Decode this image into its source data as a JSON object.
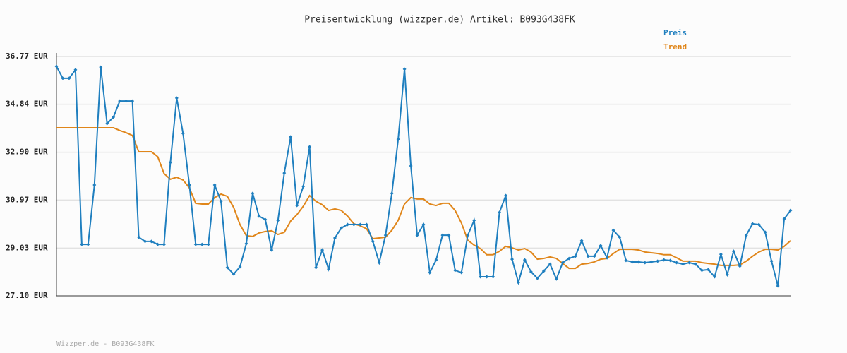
{
  "chart_data": {
    "type": "line",
    "title": "Preisentwicklung (wizzper.de) Artikel: B093G438FK",
    "footer": "Wizzper.de - B093G438FK",
    "categories": [
      null,
      null,
      null,
      null,
      null,
      null,
      null,
      null,
      null,
      null,
      null,
      null,
      null,
      null,
      null,
      null,
      null,
      null,
      null,
      null,
      null,
      null,
      null,
      null,
      null,
      null,
      null,
      null,
      null,
      null,
      null,
      null,
      null,
      null,
      null,
      null,
      null,
      null,
      null,
      null,
      null,
      null,
      null,
      null,
      null,
      null,
      null,
      null,
      null,
      null,
      null,
      null,
      null,
      null,
      null,
      null,
      null,
      null,
      null,
      null,
      null,
      null,
      null,
      null,
      null,
      null,
      null,
      null,
      null,
      null,
      null,
      null,
      null,
      null,
      null,
      null,
      null,
      null,
      null,
      null,
      null,
      null,
      null,
      null,
      null,
      null,
      null,
      null,
      null,
      null,
      null,
      null,
      null,
      null,
      null,
      null,
      null,
      null,
      null,
      null,
      null,
      null,
      null,
      null,
      null,
      null,
      null,
      null,
      null,
      null,
      null,
      null,
      null,
      null,
      null,
      null,
      null
    ],
    "series": [
      {
        "name": "Preis",
        "color": "#1f7fbf",
        "values": [
          36.37,
          35.89,
          35.89,
          36.23,
          29.18,
          29.18,
          31.58,
          36.34,
          34.06,
          34.32,
          34.97,
          34.97,
          34.97,
          29.47,
          29.3,
          29.3,
          29.18,
          29.18,
          32.49,
          35.09,
          33.66,
          31.58,
          29.18,
          29.18,
          29.18,
          31.58,
          30.92,
          28.24,
          27.98,
          28.27,
          29.21,
          31.24,
          30.32,
          30.18,
          28.95,
          30.15,
          32.06,
          33.52,
          30.75,
          31.52,
          33.12,
          28.24,
          28.95,
          28.18,
          29.44,
          29.84,
          29.98,
          29.98,
          29.98,
          29.98,
          29.3,
          28.44,
          29.55,
          31.24,
          33.43,
          36.26,
          32.35,
          29.55,
          29.98,
          28.04,
          28.55,
          29.55,
          29.55,
          28.13,
          28.04,
          29.55,
          30.15,
          27.87,
          27.87,
          27.87,
          30.47,
          31.15,
          28.58,
          27.64,
          28.55,
          28.07,
          27.81,
          28.1,
          28.38,
          27.78,
          28.44,
          28.61,
          28.7,
          29.33,
          28.7,
          28.7,
          29.13,
          28.64,
          29.75,
          29.47,
          28.53,
          28.47,
          28.47,
          28.44,
          28.47,
          28.5,
          28.55,
          28.53,
          28.44,
          28.38,
          28.44,
          28.38,
          28.13,
          28.16,
          27.87,
          28.78,
          27.96,
          28.9,
          28.3,
          29.55,
          30.01,
          29.98,
          29.67,
          28.5,
          27.5,
          30.21,
          30.55
        ]
      },
      {
        "name": "Trend",
        "color": "#e0861a",
        "values": [
          33.89,
          33.89,
          33.89,
          33.89,
          33.89,
          33.89,
          33.89,
          33.89,
          33.89,
          33.89,
          33.78,
          33.69,
          33.58,
          32.92,
          32.92,
          32.92,
          32.72,
          32.04,
          31.81,
          31.89,
          31.78,
          31.46,
          30.84,
          30.81,
          30.81,
          31.07,
          31.21,
          31.12,
          30.67,
          29.98,
          29.53,
          29.5,
          29.64,
          29.7,
          29.73,
          29.58,
          29.67,
          30.12,
          30.38,
          30.72,
          31.15,
          30.92,
          30.78,
          30.55,
          30.61,
          30.55,
          30.32,
          30.01,
          29.93,
          29.81,
          29.41,
          29.44,
          29.47,
          29.75,
          30.15,
          30.81,
          31.07,
          31.01,
          31.01,
          30.81,
          30.75,
          30.84,
          30.84,
          30.55,
          30.04,
          29.35,
          29.15,
          29.01,
          28.76,
          28.76,
          28.9,
          29.1,
          29.04,
          28.95,
          29.01,
          28.87,
          28.58,
          28.61,
          28.67,
          28.61,
          28.41,
          28.21,
          28.21,
          28.38,
          28.41,
          28.47,
          28.58,
          28.61,
          28.81,
          28.98,
          28.98,
          28.98,
          28.95,
          28.87,
          28.84,
          28.81,
          28.76,
          28.76,
          28.64,
          28.5,
          28.5,
          28.5,
          28.44,
          28.41,
          28.38,
          28.33,
          28.33,
          28.33,
          28.35,
          28.5,
          28.7,
          28.87,
          28.98,
          28.98,
          28.95,
          29.1,
          29.33
        ]
      }
    ],
    "ylim": [
      27.1,
      36.77
    ],
    "yticks": [
      {
        "value": 27.1,
        "label": "27.10 EUR"
      },
      {
        "value": 29.03,
        "label": "29.03 EUR"
      },
      {
        "value": 30.97,
        "label": "30.97 EUR"
      },
      {
        "value": 32.9,
        "label": "32.90 EUR"
      },
      {
        "value": 34.84,
        "label": "34.84 EUR"
      },
      {
        "value": 36.77,
        "label": "36.77 EUR"
      }
    ],
    "grid": true
  }
}
